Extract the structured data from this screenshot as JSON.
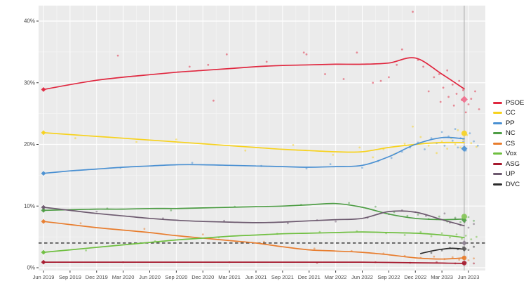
{
  "chart_data": {
    "type": "scatter",
    "title": "",
    "xlabel": "",
    "ylabel": "",
    "x_tick_labels": [
      "Jun 2019",
      "Sep 2019",
      "Dec 2019",
      "Mar 2020",
      "Jun 2020",
      "Sep 2020",
      "Dec 2020",
      "Mar 2021",
      "Jun 2021",
      "Sep 2021",
      "Dec 2021",
      "Mar 2022",
      "Jun 2022",
      "Sep 2022",
      "Dec 2022",
      "Mar 2023",
      "Jun 2023"
    ],
    "y_ticks": {
      "values": [
        0,
        10,
        20,
        30,
        40
      ],
      "labels": [
        "0%",
        "10%",
        "20%",
        "30%",
        "40%"
      ],
      "minor": [
        5,
        15,
        25,
        35
      ]
    },
    "ylim": [
      0,
      42.5
    ],
    "grid": "on",
    "legend_position": "right",
    "threshold_line": {
      "value": 4,
      "style": "dashed",
      "color": "#3a3a3a"
    },
    "election_day_line": {
      "t": 15.84,
      "color": "#ababab"
    },
    "trend_t": [
      0,
      1,
      2,
      3,
      4,
      5,
      6,
      7,
      8,
      9,
      10,
      11,
      12,
      13,
      14,
      15,
      15.84
    ],
    "series": [
      {
        "name": "PSOE",
        "color": "#E02840",
        "result_2023_color": "#EF6B8B",
        "result_shape": "diamond",
        "trend": [
          28.9,
          29.7,
          30.4,
          30.9,
          31.3,
          31.7,
          32.0,
          32.3,
          32.6,
          32.8,
          32.9,
          33.0,
          33.0,
          33.2,
          34.0,
          31.4,
          29.0
        ],
        "result_2019": 28.9,
        "result_2023": 27.3,
        "scatter": [
          [
            2.8,
            34.4
          ],
          [
            5.5,
            32.6
          ],
          [
            6.2,
            32.9
          ],
          [
            6.4,
            27.1
          ],
          [
            6.9,
            34.6
          ],
          [
            8.4,
            33.4
          ],
          [
            9.9,
            34.6
          ],
          [
            9.8,
            34.9
          ],
          [
            10.6,
            31.4
          ],
          [
            11.3,
            30.6
          ],
          [
            11.8,
            34.9
          ],
          [
            12.4,
            30.0
          ],
          [
            12.7,
            30.3
          ],
          [
            13.0,
            30.9
          ],
          [
            13.3,
            32.9
          ],
          [
            13.5,
            35.4
          ],
          [
            13.9,
            41.5
          ],
          [
            14.1,
            33.7
          ],
          [
            14.3,
            32.6
          ],
          [
            14.5,
            28.6
          ],
          [
            14.7,
            30.9
          ],
          [
            14.9,
            31.4
          ],
          [
            14.95,
            26.9
          ],
          [
            15.05,
            29.2
          ],
          [
            15.2,
            32.0
          ],
          [
            15.25,
            27.7
          ],
          [
            15.4,
            29.7
          ],
          [
            15.45,
            26.3
          ],
          [
            15.55,
            28.2
          ],
          [
            15.65,
            30.3
          ],
          [
            15.75,
            27.2
          ],
          [
            15.8,
            28.8
          ],
          [
            15.9,
            25.2
          ],
          [
            16.0,
            26.5
          ],
          [
            16.1,
            27.4
          ],
          [
            16.25,
            28.6
          ],
          [
            16.4,
            25.7
          ]
        ]
      },
      {
        "name": "CC",
        "color": "#F7D21E",
        "result_2023_color": "#F7D21E",
        "result_shape": "circle",
        "trend": [
          21.9,
          21.6,
          21.3,
          21.0,
          20.7,
          20.4,
          20.1,
          19.8,
          19.5,
          19.2,
          19.0,
          18.8,
          18.8,
          19.5,
          20.0,
          20.3,
          20.3
        ],
        "result_2019": 21.9,
        "result_2023": 21.8,
        "scatter": [
          [
            1.2,
            21.0
          ],
          [
            3.5,
            20.4
          ],
          [
            5.0,
            20.8
          ],
          [
            7.6,
            19.0
          ],
          [
            9.4,
            19.9
          ],
          [
            10.9,
            18.3
          ],
          [
            11.9,
            19.5
          ],
          [
            12.4,
            17.9
          ],
          [
            12.8,
            19.2
          ],
          [
            13.2,
            18.4
          ],
          [
            13.6,
            20.1
          ],
          [
            13.9,
            22.9
          ],
          [
            14.2,
            21.2
          ],
          [
            14.5,
            19.8
          ],
          [
            14.8,
            18.6
          ],
          [
            15.0,
            20.5
          ],
          [
            15.2,
            19.3
          ],
          [
            15.35,
            21.0
          ],
          [
            15.5,
            20.0
          ],
          [
            15.6,
            22.3
          ],
          [
            15.7,
            19.5
          ],
          [
            15.8,
            20.8
          ],
          [
            15.95,
            21.5
          ],
          [
            16.1,
            20.2
          ],
          [
            16.3,
            19.6
          ]
        ]
      },
      {
        "name": "PP",
        "color": "#4A90D2",
        "result_2023_color": "#4A90D2",
        "result_shape": "diamond",
        "trend": [
          15.3,
          15.7,
          16.0,
          16.3,
          16.5,
          16.7,
          16.7,
          16.6,
          16.5,
          16.4,
          16.3,
          16.4,
          16.6,
          18.0,
          20.0,
          21.1,
          20.9
        ],
        "result_2019": 15.3,
        "result_2023": 19.3,
        "scatter": [
          [
            2.9,
            16.2
          ],
          [
            5.6,
            17.0
          ],
          [
            8.2,
            16.5
          ],
          [
            9.9,
            16.1
          ],
          [
            10.8,
            16.8
          ],
          [
            12.0,
            16.2
          ],
          [
            12.6,
            17.3
          ],
          [
            13.1,
            17.8
          ],
          [
            13.5,
            18.8
          ],
          [
            13.8,
            19.5
          ],
          [
            14.1,
            20.3
          ],
          [
            14.35,
            19.2
          ],
          [
            14.6,
            21.0
          ],
          [
            14.8,
            20.2
          ],
          [
            15.0,
            22.0
          ],
          [
            15.1,
            19.8
          ],
          [
            15.25,
            21.3
          ],
          [
            15.4,
            20.6
          ],
          [
            15.5,
            22.5
          ],
          [
            15.6,
            19.5
          ],
          [
            15.7,
            21.0
          ],
          [
            15.8,
            20.4
          ],
          [
            15.9,
            19.0
          ],
          [
            16.05,
            21.8
          ],
          [
            16.2,
            20.5
          ],
          [
            16.35,
            19.8
          ]
        ]
      },
      {
        "name": "NC",
        "color": "#4E9D45",
        "result_2023_color": "#4E9D45",
        "result_shape": "diamond",
        "trend": [
          9.3,
          9.4,
          9.5,
          9.5,
          9.6,
          9.6,
          9.7,
          9.8,
          9.9,
          10.0,
          10.2,
          10.4,
          9.8,
          8.7,
          8.0,
          7.8,
          7.9
        ],
        "result_2019": 9.3,
        "result_2023": 7.7,
        "scatter": [
          [
            2.4,
            9.6
          ],
          [
            4.8,
            9.3
          ],
          [
            7.2,
            9.9
          ],
          [
            9.7,
            10.2
          ],
          [
            11.5,
            10.5
          ],
          [
            12.5,
            9.9
          ],
          [
            13.2,
            9.0
          ],
          [
            13.7,
            8.4
          ],
          [
            14.1,
            8.6
          ],
          [
            14.5,
            7.9
          ],
          [
            14.9,
            8.3
          ],
          [
            15.2,
            7.5
          ],
          [
            15.5,
            8.1
          ],
          [
            15.7,
            7.4
          ],
          [
            15.85,
            7.8
          ],
          [
            16.0,
            8.2
          ],
          [
            16.2,
            7.6
          ]
        ]
      },
      {
        "name": "CS",
        "color": "#E87D2E",
        "result_2023_color": "#E87D2E",
        "result_shape": "circle",
        "trend": [
          7.5,
          7.0,
          6.5,
          6.1,
          5.7,
          5.2,
          4.8,
          4.4,
          4.0,
          3.4,
          2.9,
          2.7,
          2.5,
          2.1,
          1.6,
          1.4,
          1.6
        ],
        "result_2019": 7.5,
        "result_2023": 1.6,
        "scatter": [
          [
            1.4,
            7.2
          ],
          [
            3.8,
            6.3
          ],
          [
            6.0,
            5.4
          ],
          [
            8.3,
            4.2
          ],
          [
            10.2,
            3.1
          ],
          [
            11.6,
            2.7
          ],
          [
            12.8,
            2.3
          ],
          [
            13.6,
            1.9
          ],
          [
            14.2,
            1.6
          ],
          [
            14.7,
            1.8
          ],
          [
            15.1,
            1.4
          ],
          [
            15.4,
            1.7
          ],
          [
            15.65,
            1.3
          ],
          [
            15.8,
            1.6
          ],
          [
            16.0,
            1.2
          ],
          [
            16.2,
            1.5
          ]
        ]
      },
      {
        "name": "Vox",
        "color": "#6FBF40",
        "result_2023_color": "#83C554",
        "result_shape": "circle",
        "trend": [
          2.5,
          2.9,
          3.3,
          3.7,
          4.1,
          4.5,
          4.8,
          5.1,
          5.3,
          5.5,
          5.6,
          5.7,
          5.8,
          5.7,
          5.6,
          5.3,
          4.9
        ],
        "result_2019": 2.5,
        "result_2023": 8.3,
        "scatter": [
          [
            1.6,
            2.8
          ],
          [
            4.2,
            4.3
          ],
          [
            6.6,
            4.9
          ],
          [
            8.8,
            5.5
          ],
          [
            10.4,
            5.8
          ],
          [
            11.8,
            5.9
          ],
          [
            12.9,
            5.6
          ],
          [
            13.6,
            5.3
          ],
          [
            14.2,
            5.8
          ],
          [
            14.6,
            5.1
          ],
          [
            15.0,
            5.6
          ],
          [
            15.3,
            4.9
          ],
          [
            15.55,
            5.4
          ],
          [
            15.75,
            4.7
          ],
          [
            15.9,
            5.2
          ],
          [
            16.1,
            4.6
          ],
          [
            16.3,
            5.0
          ]
        ]
      },
      {
        "name": "ASG",
        "color": "#A6192E",
        "result_2023_color": "#A6192E",
        "result_shape": "circle",
        "trend": [
          0.9,
          0.9,
          0.9,
          0.9,
          0.9,
          0.9,
          0.9,
          0.9,
          0.9,
          0.9,
          0.9,
          0.9,
          0.9,
          0.85,
          0.8,
          0.75,
          0.7
        ],
        "result_2019": 0.9,
        "result_2023": 0.75,
        "scatter": [
          [
            3.0,
            0.9
          ],
          [
            7.0,
            0.9
          ],
          [
            10.3,
            0.8
          ],
          [
            12.5,
            0.9
          ],
          [
            13.8,
            0.8
          ],
          [
            14.8,
            0.9
          ],
          [
            15.5,
            0.7
          ],
          [
            15.9,
            0.8
          ],
          [
            16.2,
            0.7
          ]
        ]
      },
      {
        "name": "UP",
        "color": "#6D5A6F",
        "result_2023_color": "#8A7D8D",
        "result_shape": "diamond",
        "trend": [
          9.8,
          9.3,
          8.8,
          8.4,
          8.0,
          7.7,
          7.5,
          7.4,
          7.3,
          7.4,
          7.6,
          7.8,
          8.0,
          9.1,
          9.0,
          7.8,
          6.8
        ],
        "result_2019": 9.8,
        "result_2023": 4.0,
        "scatter": [
          [
            2.0,
            9.1
          ],
          [
            4.5,
            8.0
          ],
          [
            6.8,
            7.6
          ],
          [
            9.2,
            7.2
          ],
          [
            10.3,
            7.7
          ],
          [
            11.0,
            7.5
          ],
          [
            12.2,
            8.1
          ],
          [
            13.0,
            8.7
          ],
          [
            13.5,
            9.3
          ],
          [
            14.0,
            9.0
          ],
          [
            14.4,
            8.4
          ],
          [
            14.8,
            7.9
          ],
          [
            15.1,
            8.8
          ],
          [
            15.3,
            7.3
          ],
          [
            15.5,
            7.9
          ],
          [
            15.7,
            6.9
          ],
          [
            15.85,
            7.4
          ],
          [
            16.0,
            6.5
          ],
          [
            16.2,
            7.1
          ]
        ]
      },
      {
        "name": "DVC",
        "color": "#2B2B2B",
        "result_2023_color": "#555555",
        "result_shape": "diamond",
        "trend": [
          2.3,
          2.7,
          3.0,
          3.15,
          3.0
        ],
        "trend_t": [
          14.2,
          14.6,
          15.0,
          15.4,
          15.84
        ],
        "result_2019": null,
        "result_2023": 3.05,
        "scatter": [
          [
            14.6,
            2.4
          ],
          [
            15.0,
            2.8
          ],
          [
            15.3,
            3.2
          ],
          [
            15.6,
            3.0
          ],
          [
            15.8,
            3.3
          ],
          [
            16.0,
            2.9
          ],
          [
            16.2,
            3.4
          ]
        ]
      }
    ],
    "legend": [
      {
        "label": "PSOE",
        "color": "#E02840"
      },
      {
        "label": "CC",
        "color": "#F7D21E"
      },
      {
        "label": "PP",
        "color": "#4A90D2"
      },
      {
        "label": "NC",
        "color": "#4E9D45"
      },
      {
        "label": "CS",
        "color": "#E87D2E"
      },
      {
        "label": "Vox",
        "color": "#6FBF40"
      },
      {
        "label": "ASG",
        "color": "#A6192E"
      },
      {
        "label": "UP",
        "color": "#6D5A6F"
      },
      {
        "label": "DVC",
        "color": "#2B2B2B"
      }
    ],
    "colors": {
      "panel_background": "#EBEBEB",
      "grid_major": "#FFFFFF",
      "grid_minor": "#F4F4F4",
      "tick_text": "#4D4D4D",
      "legend_text": "#1A1A1A"
    }
  }
}
